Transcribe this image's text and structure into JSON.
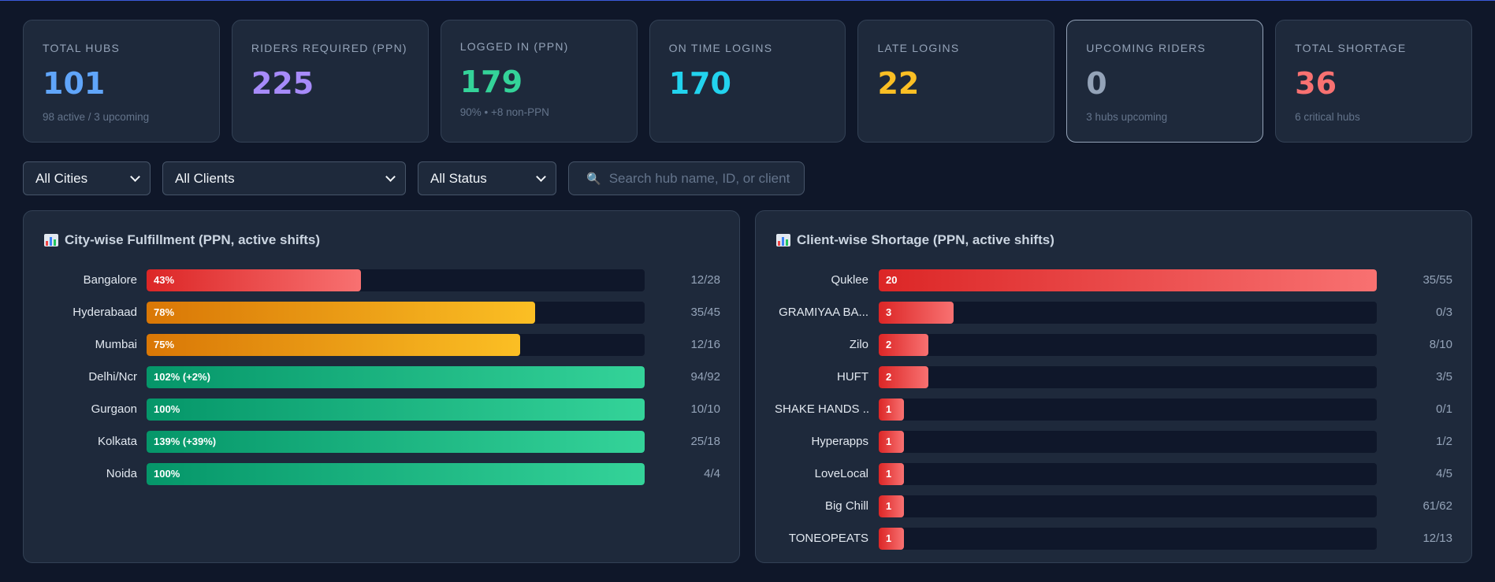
{
  "stats": [
    {
      "label": "TOTAL HUBS",
      "value": "101",
      "sub": "98 active / 3 upcoming",
      "color": "#60a5fa"
    },
    {
      "label": "RIDERS REQUIRED (PPN)",
      "value": "225",
      "sub": "",
      "color": "#a78bfa"
    },
    {
      "label": "LOGGED IN (PPN)",
      "value": "179",
      "sub": "90% • +8 non-PPN",
      "color": "#34d399"
    },
    {
      "label": "ON TIME LOGINS",
      "value": "170",
      "sub": "",
      "color": "#22d3ee"
    },
    {
      "label": "LATE LOGINS",
      "value": "22",
      "sub": "",
      "color": "#fbbf24"
    },
    {
      "label": "UPCOMING RIDERS",
      "value": "0",
      "sub": "3 hubs upcoming",
      "color": "#94a3b8"
    },
    {
      "label": "TOTAL SHORTAGE",
      "value": "36",
      "sub": "6 critical hubs",
      "color": "#f87171"
    }
  ],
  "filters": {
    "city": "All Cities",
    "client": "All Clients",
    "status": "All Status",
    "search_placeholder": "Search hub name, ID, or client"
  },
  "city_panel": {
    "title": "City-wise Fulfillment (PPN, active shifts)",
    "rows": [
      {
        "label": "Bangalore",
        "bar_text": "43%",
        "fill_fraction": 0.43,
        "tone": "red",
        "value": "12/28"
      },
      {
        "label": "Hyderabaad",
        "bar_text": "78%",
        "fill_fraction": 0.78,
        "tone": "orange",
        "value": "35/45"
      },
      {
        "label": "Mumbai",
        "bar_text": "75%",
        "fill_fraction": 0.75,
        "tone": "orange",
        "value": "12/16"
      },
      {
        "label": "Delhi/Ncr",
        "bar_text": "102% (+2%)",
        "fill_fraction": 1.0,
        "tone": "green",
        "value": "94/92"
      },
      {
        "label": "Gurgaon",
        "bar_text": "100%",
        "fill_fraction": 1.0,
        "tone": "green",
        "value": "10/10"
      },
      {
        "label": "Kolkata",
        "bar_text": "139% (+39%)",
        "fill_fraction": 1.0,
        "tone": "green",
        "value": "25/18"
      },
      {
        "label": "Noida",
        "bar_text": "100%",
        "fill_fraction": 1.0,
        "tone": "green",
        "value": "4/4"
      }
    ]
  },
  "client_panel": {
    "title": "Client-wise Shortage (PPN, active shifts)",
    "max_shortage": 20,
    "rows": [
      {
        "label": "Quklee",
        "shortage": 20,
        "value": "35/55"
      },
      {
        "label": "GRAMIYAA BA...",
        "shortage": 3,
        "value": "0/3"
      },
      {
        "label": "Zilo",
        "shortage": 2,
        "value": "8/10"
      },
      {
        "label": "HUFT",
        "shortage": 2,
        "value": "3/5"
      },
      {
        "label": "SHAKE HANDS ...",
        "shortage": 1,
        "value": "0/1"
      },
      {
        "label": "Hyperapps",
        "shortage": 1,
        "value": "1/2"
      },
      {
        "label": "LoveLocal",
        "shortage": 1,
        "value": "4/5"
      },
      {
        "label": "Big Chill",
        "shortage": 1,
        "value": "61/62"
      },
      {
        "label": "TONEOPEATS",
        "shortage": 1,
        "value": "12/13"
      }
    ]
  }
}
